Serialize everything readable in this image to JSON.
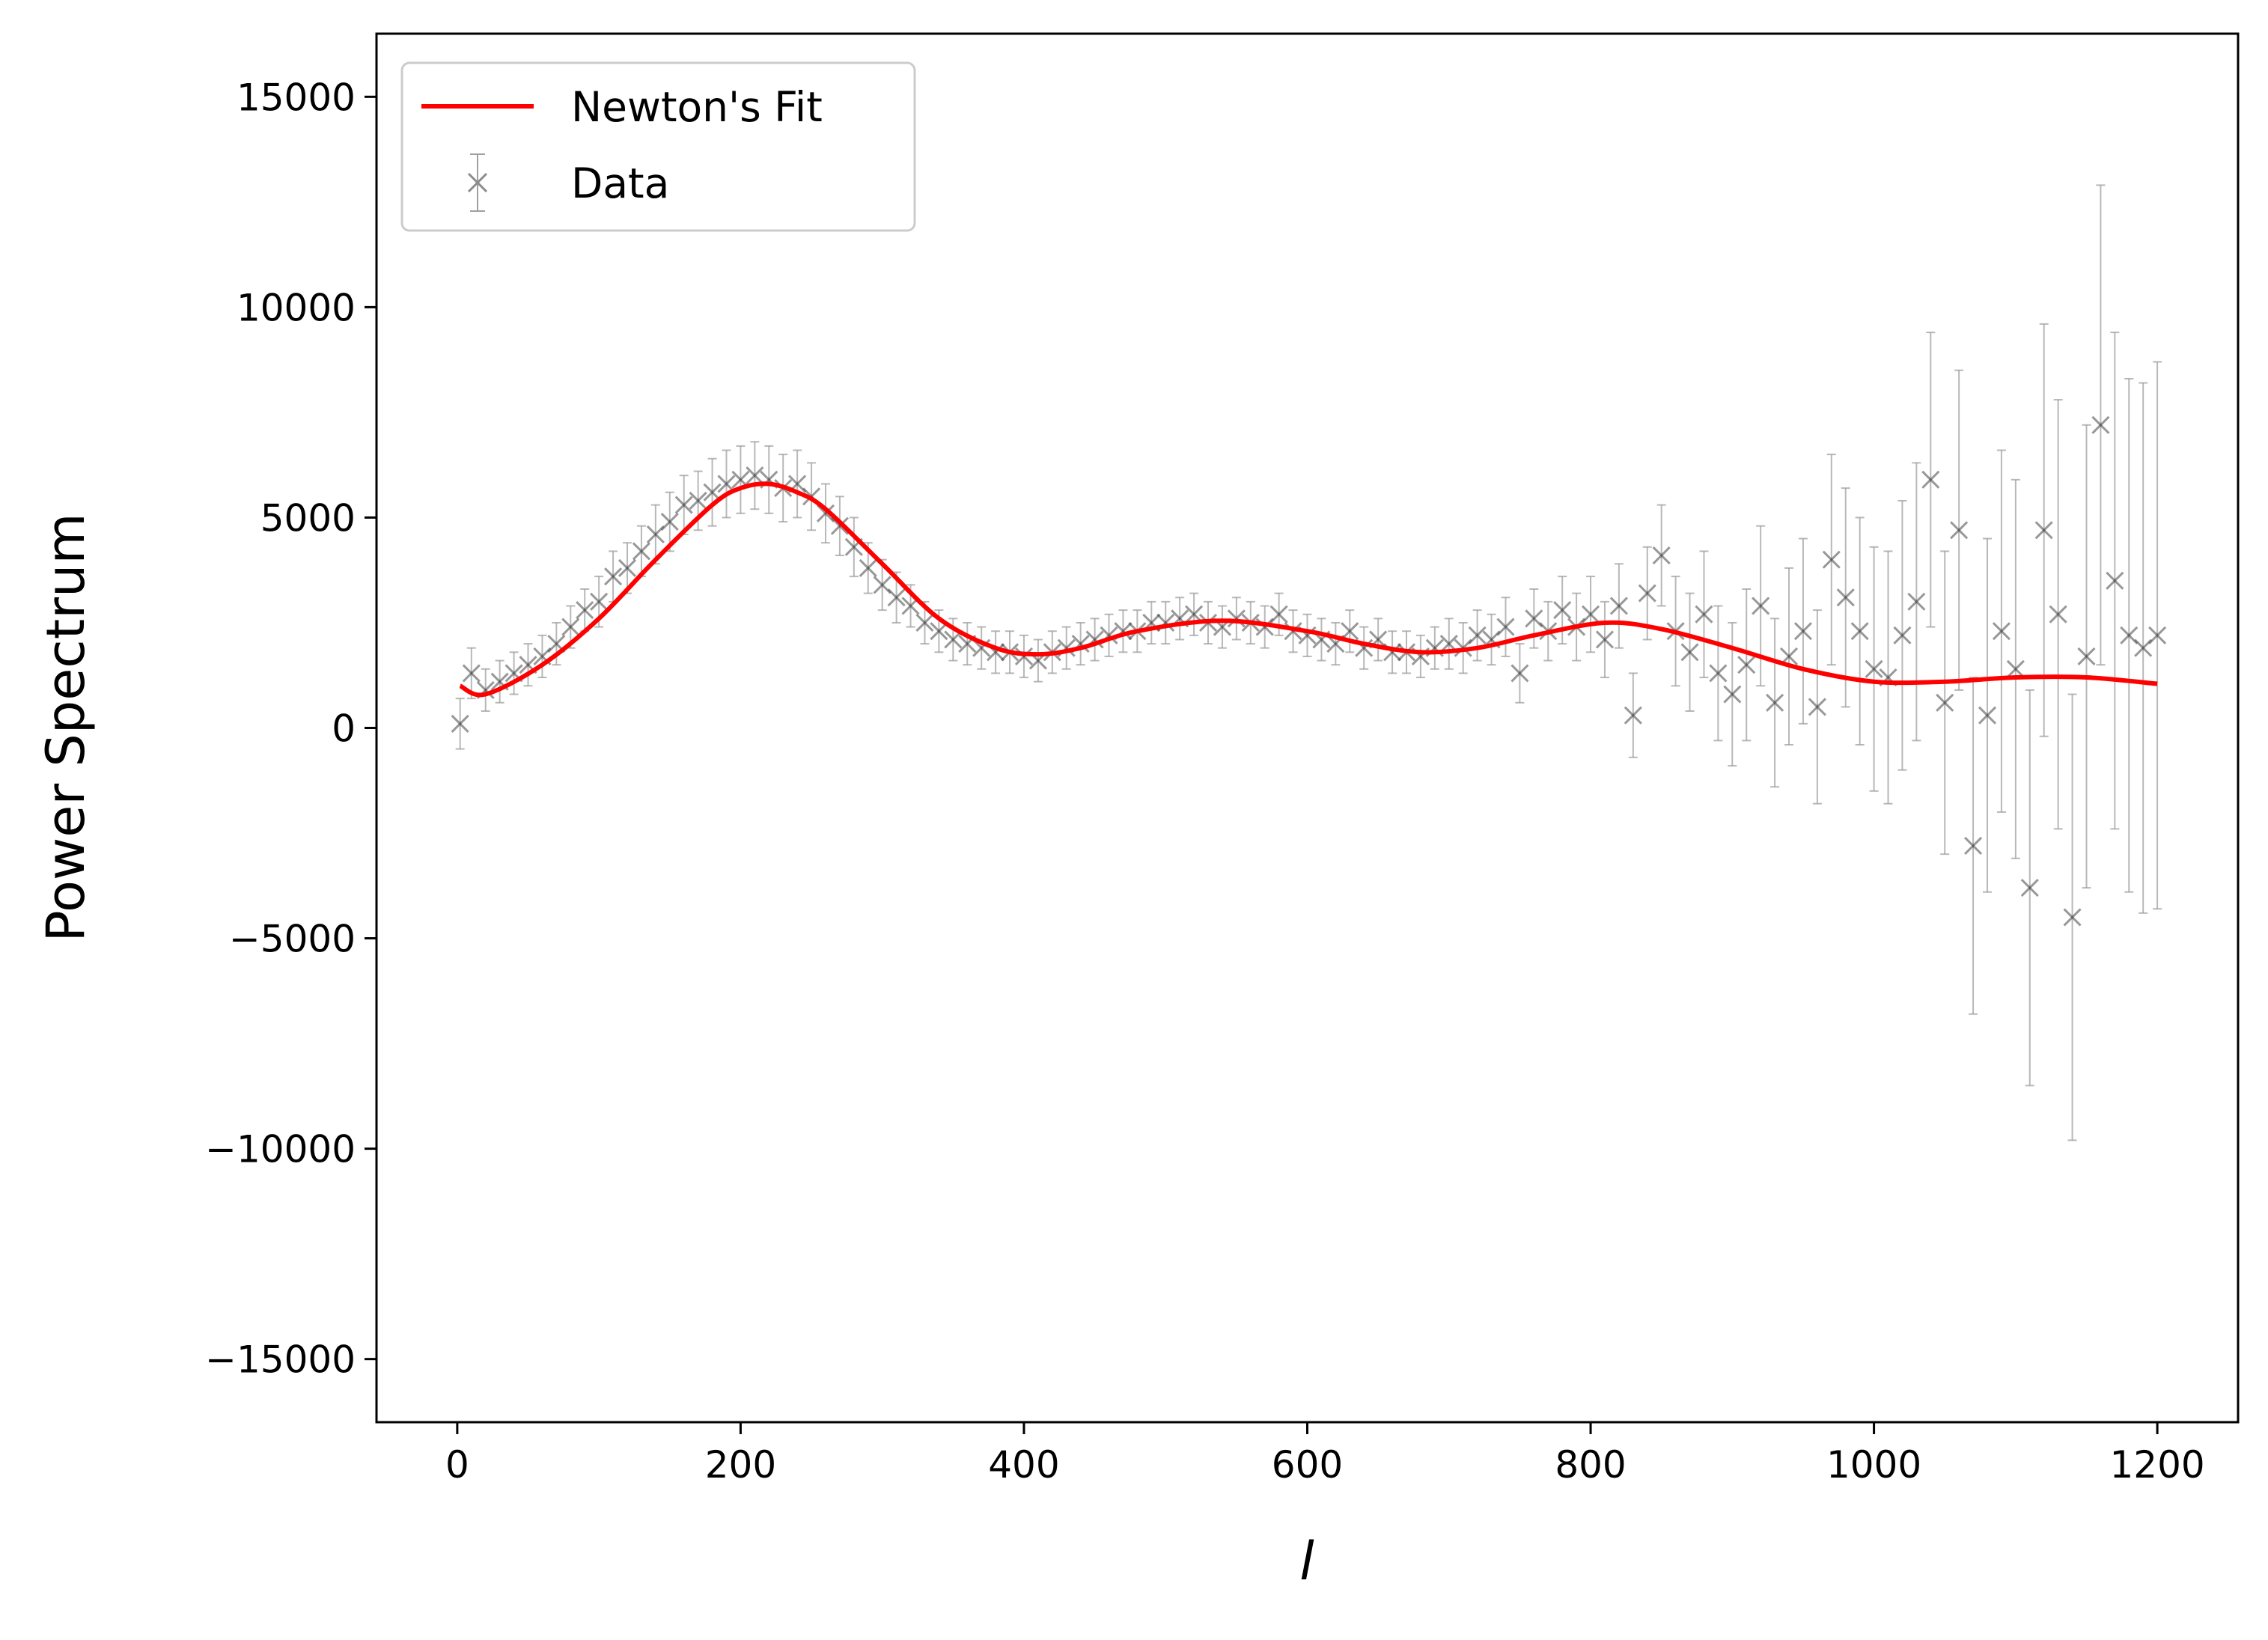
{
  "chart_data": {
    "type": "scatter",
    "title": "",
    "xlabel": "l",
    "ylabel": "Power Spectrum",
    "xlim": [
      -57,
      1257
    ],
    "ylim": [
      -16500,
      16500
    ],
    "xticks": [
      0,
      200,
      400,
      600,
      800,
      1000,
      1200
    ],
    "xtick_labels": [
      "0",
      "200",
      "400",
      "600",
      "800",
      "1000",
      "1200"
    ],
    "yticks": [
      15000,
      10000,
      5000,
      0,
      -5000,
      -10000,
      -15000
    ],
    "ytick_labels": [
      "15000",
      "10000",
      "5000",
      "0",
      "−5000",
      "−10000",
      "−15000"
    ],
    "grid": false,
    "legend_position": "top-left",
    "series": [
      {
        "name": "Newton's Fit",
        "kind": "line",
        "color": "#ff0000",
        "x": [
          2,
          20,
          60,
          100,
          140,
          180,
          200,
          220,
          240,
          260,
          300,
          340,
          380,
          410,
          440,
          480,
          540,
          600,
          640,
          680,
          720,
          760,
          810,
          850,
          900,
          950,
          1000,
          1050,
          1100,
          1150,
          1200
        ],
        "y": [
          1000,
          800,
          1500,
          2600,
          4000,
          5300,
          5700,
          5800,
          5600,
          5200,
          3900,
          2600,
          1900,
          1750,
          1900,
          2300,
          2550,
          2300,
          2000,
          1800,
          1900,
          2200,
          2500,
          2350,
          1900,
          1400,
          1100,
          1100,
          1200,
          1200,
          1050
        ]
      },
      {
        "name": "Data",
        "kind": "errorbar-scatter",
        "marker": "x",
        "color": "#808080",
        "x": [
          2,
          10,
          20,
          30,
          40,
          50,
          60,
          70,
          80,
          90,
          100,
          110,
          120,
          130,
          140,
          150,
          160,
          170,
          180,
          190,
          200,
          210,
          220,
          230,
          240,
          250,
          260,
          270,
          280,
          290,
          300,
          310,
          320,
          330,
          340,
          350,
          360,
          370,
          380,
          390,
          400,
          410,
          420,
          430,
          440,
          450,
          460,
          470,
          480,
          490,
          500,
          510,
          520,
          530,
          540,
          550,
          560,
          570,
          580,
          590,
          600,
          610,
          620,
          630,
          640,
          650,
          660,
          670,
          680,
          690,
          700,
          710,
          720,
          730,
          740,
          750,
          760,
          770,
          780,
          790,
          800,
          810,
          820,
          830,
          840,
          850,
          860,
          870,
          880,
          890,
          900,
          910,
          920,
          930,
          940,
          950,
          960,
          970,
          980,
          990,
          1000,
          1010,
          1020,
          1030,
          1040,
          1050,
          1060,
          1070,
          1080,
          1090,
          1100,
          1110,
          1120,
          1130,
          1140,
          1150,
          1160,
          1170,
          1180,
          1190,
          1200
        ],
        "y": [
          100,
          1300,
          900,
          1100,
          1300,
          1500,
          1700,
          2000,
          2400,
          2800,
          3000,
          3600,
          3800,
          4200,
          4600,
          4900,
          5300,
          5400,
          5600,
          5800,
          5900,
          6000,
          5900,
          5700,
          5800,
          5500,
          5100,
          4800,
          4300,
          3800,
          3400,
          3100,
          2900,
          2500,
          2300,
          2100,
          2000,
          1900,
          1800,
          1800,
          1700,
          1600,
          1800,
          1900,
          2000,
          2100,
          2200,
          2300,
          2300,
          2500,
          2500,
          2600,
          2700,
          2500,
          2400,
          2600,
          2500,
          2400,
          2700,
          2300,
          2200,
          2100,
          2000,
          2300,
          1900,
          2100,
          1800,
          1800,
          1700,
          1900,
          2000,
          1900,
          2200,
          2100,
          2400,
          1300,
          2600,
          2300,
          2800,
          2400,
          2700,
          2100,
          2900,
          300,
          3200,
          4100,
          2300,
          1800,
          2700,
          1300,
          800,
          1500,
          2900,
          600,
          1700,
          2300,
          500,
          4000,
          3100,
          2300,
          1400,
          1200,
          2200,
          3000,
          5900,
          600,
          4700,
          -2800,
          300,
          2300,
          1400,
          -3800,
          4700,
          2700,
          -4500,
          1700,
          7200,
          3500,
          2200,
          1900,
          2200
        ],
        "yerr": [
          600,
          600,
          500,
          500,
          500,
          500,
          500,
          500,
          500,
          500,
          600,
          600,
          600,
          600,
          700,
          700,
          700,
          700,
          800,
          800,
          800,
          800,
          800,
          800,
          800,
          800,
          700,
          700,
          700,
          600,
          600,
          600,
          500,
          500,
          500,
          500,
          500,
          500,
          500,
          500,
          500,
          500,
          500,
          500,
          500,
          500,
          500,
          500,
          500,
          500,
          500,
          500,
          500,
          500,
          500,
          500,
          500,
          500,
          500,
          500,
          500,
          500,
          500,
          500,
          500,
          500,
          500,
          500,
          500,
          500,
          600,
          600,
          600,
          600,
          700,
          700,
          700,
          700,
          800,
          800,
          900,
          900,
          1000,
          1000,
          1100,
          1200,
          1300,
          1400,
          1500,
          1600,
          1700,
          1800,
          1900,
          2000,
          2100,
          2200,
          2300,
          2500,
          2600,
          2700,
          2900,
          3000,
          3200,
          3300,
          3500,
          3600,
          3800,
          4000,
          4200,
          4300,
          4500,
          4700,
          4900,
          5100,
          5300,
          5500,
          5700,
          5900,
          6100,
          6300,
          6500
        ]
      }
    ]
  }
}
